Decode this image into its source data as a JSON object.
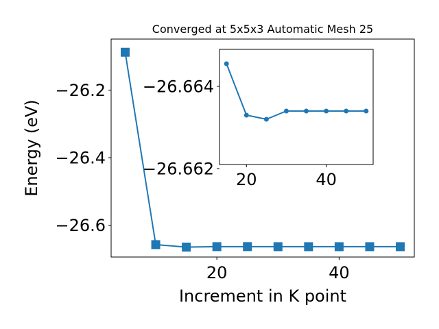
{
  "chart_data": [
    {
      "type": "line",
      "title": "Converged at 5x5x3 Automatic Mesh 25",
      "xlabel": "Increment in K point",
      "ylabel": "Energy (eV)",
      "xlim": [
        2.7,
        52.3
      ],
      "ylim": [
        -26.694,
        -26.049
      ],
      "xticks": [
        20,
        40
      ],
      "xtick_labels": [
        "20",
        "40"
      ],
      "yticks": [
        -26.6,
        -26.4,
        -26.2
      ],
      "ytick_labels": [
        "−26.6",
        "−26.4",
        "−26.2"
      ],
      "marker": "square",
      "color": "#1f77b4",
      "grid": false,
      "series": [
        {
          "x": [
            5,
            10,
            15,
            20,
            25,
            30,
            35,
            40,
            45,
            50
          ],
          "y": [
            -26.088,
            -26.6573,
            -26.66455,
            -26.6633,
            -26.6632,
            -26.6634,
            -26.6634,
            -26.6634,
            -26.6634,
            -26.6634
          ]
        }
      ]
    },
    {
      "type": "line",
      "title": "",
      "xlabel": "",
      "ylabel": "",
      "placement": "inset upper-right",
      "xlim": [
        13.25,
        51.75
      ],
      "ylim": [
        -26.6621,
        -26.6649
      ],
      "xticks": [
        20,
        40
      ],
      "xtick_labels": [
        "20",
        "40"
      ],
      "yticks": [
        -26.664,
        -26.662
      ],
      "ytick_labels": [
        "−26.664",
        "−26.662"
      ],
      "marker": "circle",
      "color": "#1f77b4",
      "grid": false,
      "series": [
        {
          "x": [
            15,
            20,
            25,
            30,
            35,
            40,
            45,
            50
          ],
          "y": [
            -26.66455,
            -26.6633,
            -26.6632,
            -26.6634,
            -26.6634,
            -26.6634,
            -26.6634,
            -26.6634
          ]
        }
      ]
    }
  ]
}
